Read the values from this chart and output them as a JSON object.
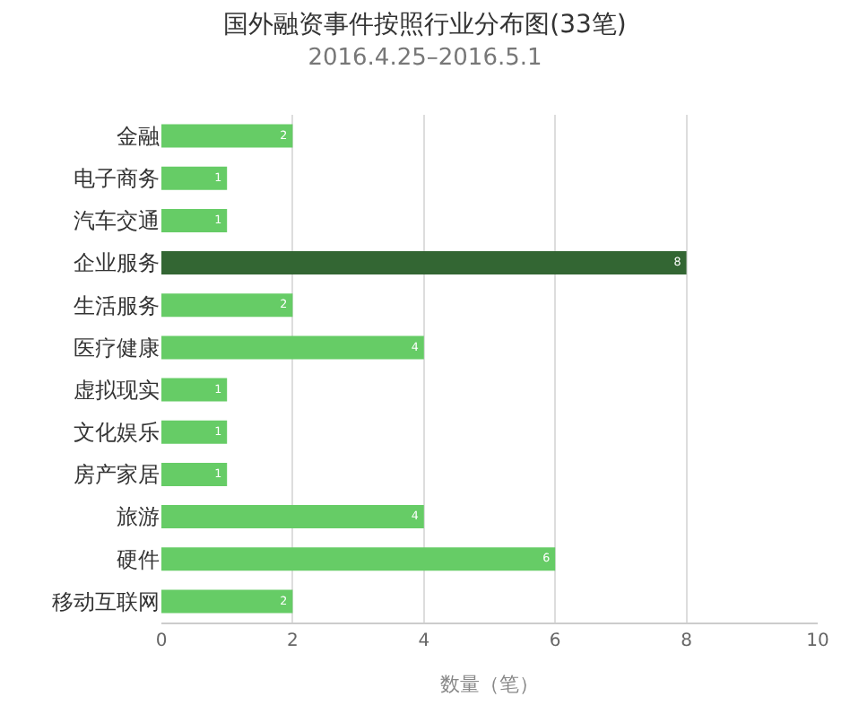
{
  "chart_data": {
    "type": "bar",
    "orientation": "horizontal",
    "title": "国外融资事件按照行业分布图(33笔)",
    "subtitle": "2016.4.25–2016.5.1",
    "xlabel": "数量（笔）",
    "categories": [
      "金融",
      "电子商务",
      "汽车交通",
      "企业服务",
      "生活服务",
      "医疗健康",
      "虚拟现实",
      "文化娱乐",
      "房产家居",
      "旅游",
      "硬件",
      "移动互联网"
    ],
    "values": [
      2,
      1,
      1,
      8,
      2,
      4,
      1,
      1,
      1,
      4,
      6,
      2
    ],
    "colors": [
      "#66cc66",
      "#66cc66",
      "#66cc66",
      "#336633",
      "#66cc66",
      "#66cc66",
      "#66cc66",
      "#66cc66",
      "#66cc66",
      "#66cc66",
      "#66cc66",
      "#66cc66"
    ],
    "xlim": [
      0,
      10
    ],
    "xticks": [
      0,
      2,
      4,
      6,
      8,
      10
    ],
    "grid": "x",
    "data_labels": true
  }
}
